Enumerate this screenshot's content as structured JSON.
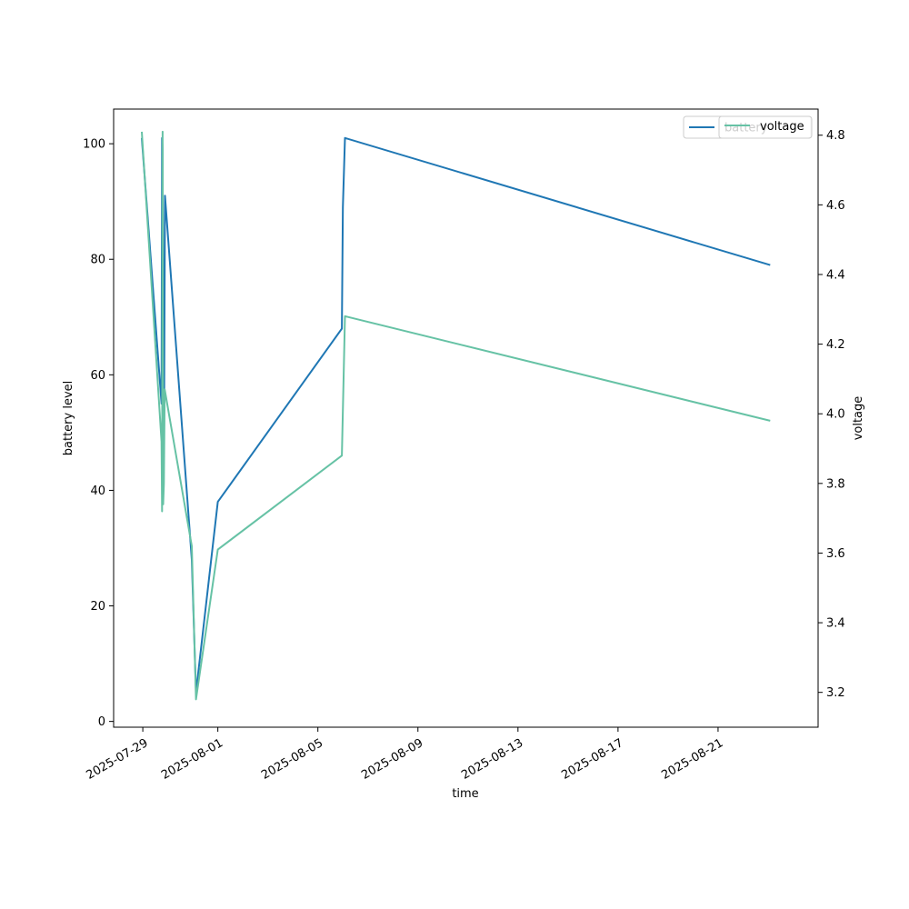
{
  "chart_data": {
    "type": "line",
    "xlabel": "time",
    "ylabel_left": "battery level",
    "ylabel_right": "voltage",
    "x_type": "datetime",
    "xlim": [
      "2025-07-27T20:00",
      "2025-08-25T00:00"
    ],
    "ylim_left": [
      -1,
      106
    ],
    "ylim_right": [
      3.1,
      4.875
    ],
    "x_ticks": [
      "2025-07-29",
      "2025-08-01",
      "2025-08-05",
      "2025-08-09",
      "2025-08-13",
      "2025-08-17",
      "2025-08-21"
    ],
    "y_ticks_left": [
      0,
      20,
      40,
      60,
      80,
      100
    ],
    "y_ticks_right": [
      3.2,
      3.4,
      3.6,
      3.8,
      4.0,
      4.2,
      4.4,
      4.6,
      4.8
    ],
    "y_ticks_right_labels": [
      "3.2",
      "3.4",
      "3.6",
      "3.8",
      "4.0",
      "4.2",
      "4.4",
      "4.6",
      "4.8"
    ],
    "legend": {
      "placement": "top-right",
      "entries": [
        "battery",
        "voltage"
      ]
    },
    "series": [
      {
        "name": "battery",
        "axis": "left",
        "color": "#1f77b4",
        "x": [
          "2025-07-28T23:00",
          "2025-07-29T18:00",
          "2025-07-29T18:30",
          "2025-07-29T19:00",
          "2025-07-29T19:45",
          "2025-07-29T20:30",
          "2025-07-29T21:15",
          "2025-07-30T23:00",
          "2025-07-31T03:00",
          "2025-08-01T00:00",
          "2025-08-05T23:00",
          "2025-08-06T00:00",
          "2025-08-06T02:00",
          "2025-08-23T02:00"
        ],
        "y": [
          101,
          55,
          101,
          99,
          51,
          55,
          91,
          28,
          5,
          38,
          68,
          89,
          101,
          79
        ]
      },
      {
        "name": "voltage",
        "axis": "right",
        "color": "#66c2a5",
        "x": [
          "2025-07-28T23:00",
          "2025-07-29T18:00",
          "2025-07-29T18:30",
          "2025-07-29T19:00",
          "2025-07-29T19:30",
          "2025-07-29T20:15",
          "2025-07-29T21:00",
          "2025-07-30T23:00",
          "2025-07-31T03:00",
          "2025-08-01T00:00",
          "2025-08-05T23:00",
          "2025-08-06T02:00",
          "2025-08-23T02:00"
        ],
        "y": [
          4.81,
          3.92,
          3.72,
          4.81,
          3.74,
          3.8,
          4.07,
          3.62,
          3.18,
          3.61,
          3.88,
          4.28,
          3.98
        ]
      }
    ]
  }
}
